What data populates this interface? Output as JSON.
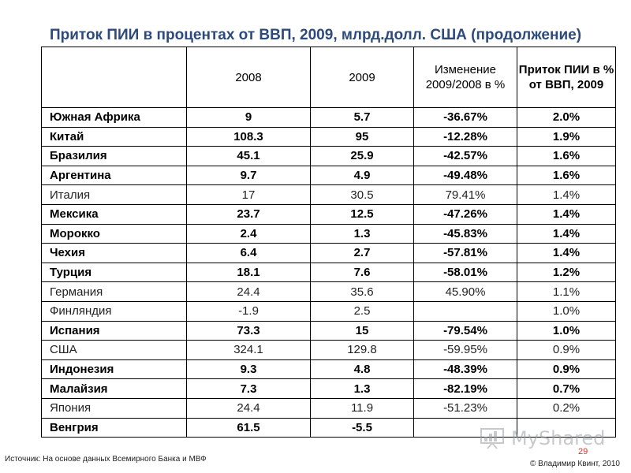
{
  "title": "Приток ПИИ в процентах от ВВП, 2009, млрд.долл. США (продолжение)",
  "headers": {
    "col1": "2008",
    "col2": "2009",
    "col3": "Изменение 2009/2008 в %",
    "col4": "Приток ПИИ в % от ВВП, 2009"
  },
  "rows": [
    {
      "country": "Южная Африка",
      "v2008": "9",
      "v2009": "5.7",
      "change": "-36.67%",
      "share": "2.0%",
      "bold": true,
      "red": false
    },
    {
      "country": "Китай",
      "v2008": "108.3",
      "v2009": "95",
      "change": "-12.28%",
      "share": "1.9%",
      "bold": true,
      "red": false
    },
    {
      "country": "Бразилия",
      "v2008": "45.1",
      "v2009": "25.9",
      "change": "-42.57%",
      "share": "1.6%",
      "bold": true,
      "red": false
    },
    {
      "country": "Аргентина",
      "v2008": "9.7",
      "v2009": "4.9",
      "change": "-49.48%",
      "share": "1.6%",
      "bold": true,
      "red": false
    },
    {
      "country": "Италия",
      "v2008": "17",
      "v2009": "30.5",
      "change": "79.41%",
      "share": "1.4%",
      "bold": false,
      "red": true
    },
    {
      "country": "Мексика",
      "v2008": "23.7",
      "v2009": "12.5",
      "change": "-47.26%",
      "share": "1.4%",
      "bold": true,
      "red": false
    },
    {
      "country": "Морокко",
      "v2008": "2.4",
      "v2009": "1.3",
      "change": "-45.83%",
      "share": "1.4%",
      "bold": true,
      "red": false
    },
    {
      "country": "Чехия",
      "v2008": "6.4",
      "v2009": "2.7",
      "change": "-57.81%",
      "share": "1.4%",
      "bold": true,
      "red": false
    },
    {
      "country": "Турция",
      "v2008": "18.1",
      "v2009": "7.6",
      "change": "-58.01%",
      "share": "1.2%",
      "bold": true,
      "red": false
    },
    {
      "country": "Германия",
      "v2008": "24.4",
      "v2009": "35.6",
      "change": "45.90%",
      "share": "1.1%",
      "bold": false,
      "red": true
    },
    {
      "country": "Финляндия",
      "v2008": "-1.9",
      "v2009": "2.5",
      "change": "",
      "share": "1.0%",
      "bold": false,
      "red": false
    },
    {
      "country": "Испания",
      "v2008": "73.3",
      "v2009": "15",
      "change": "-79.54%",
      "share": "1.0%",
      "bold": true,
      "red": false
    },
    {
      "country": "США",
      "v2008": "324.1",
      "v2009": "129.8",
      "change": "-59.95%",
      "share": "0.9%",
      "bold": false,
      "red": false
    },
    {
      "country": "Индонезия",
      "v2008": "9.3",
      "v2009": "4.8",
      "change": "-48.39%",
      "share": "0.9%",
      "bold": true,
      "red": false
    },
    {
      "country": "Малайзия",
      "v2008": "7.3",
      "v2009": "1.3",
      "change": "-82.19%",
      "share": "0.7%",
      "bold": true,
      "red": false
    },
    {
      "country": "Япония",
      "v2008": "24.4",
      "v2009": "11.9",
      "change": "-51.23%",
      "share": "0.2%",
      "bold": false,
      "red": false
    },
    {
      "country": "Венгрия",
      "v2008": "61.5",
      "v2009": "-5.5",
      "change": "",
      "share": "",
      "bold": true,
      "red": false
    }
  ],
  "footer": {
    "source": "Источник: На основе данных Всемирного Банка и МВФ",
    "page_number": "29",
    "copyright": "© Владимир Квинт, 2010",
    "watermark": "MyShared"
  },
  "colors": {
    "title": "#2e4a7a",
    "negative_growth_highlight": "#e2312a",
    "page_number": "#e2312a"
  }
}
